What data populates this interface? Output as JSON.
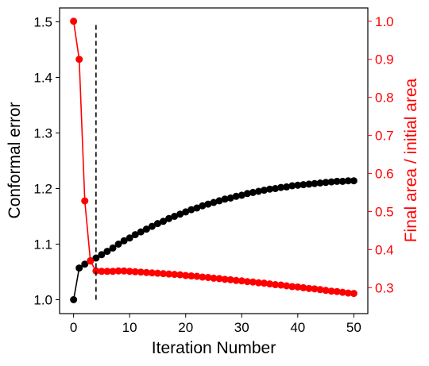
{
  "chart_data": {
    "type": "line",
    "xlabel": "Iteration Number",
    "ylabel_left": "Conformal error",
    "ylabel_right": "Final area / initial area",
    "xlim": [
      -2.5,
      52.5
    ],
    "ylim_left": [
      0.975,
      1.525
    ],
    "ylim_right": [
      0.232,
      1.035
    ],
    "x_ticks": [
      0,
      10,
      20,
      30,
      40,
      50
    ],
    "y_ticks_left": [
      1.0,
      1.1,
      1.2,
      1.3,
      1.4,
      1.5
    ],
    "y_ticks_right": [
      0.3,
      0.4,
      0.5,
      0.6,
      0.7,
      0.8,
      0.9,
      1.0
    ],
    "x_tick_labels": [
      "0",
      "10",
      "20",
      "30",
      "40",
      "50"
    ],
    "y_tick_labels_left": [
      "1.0",
      "1.1",
      "1.2",
      "1.3",
      "1.4",
      "1.5"
    ],
    "y_tick_labels_right": [
      "0.3",
      "0.4",
      "0.5",
      "0.6",
      "0.7",
      "0.8",
      "0.9",
      "1.0"
    ],
    "grid": false,
    "vline": {
      "x": 4,
      "y_from": 1.0,
      "y_to": 1.5,
      "style": "dashed",
      "color": "#000000"
    },
    "series": [
      {
        "axis": "left",
        "color": "#000000",
        "x": [
          0,
          1,
          2,
          3,
          4,
          5,
          6,
          7,
          8,
          9,
          10,
          11,
          12,
          13,
          14,
          15,
          16,
          17,
          18,
          19,
          20,
          21,
          22,
          23,
          24,
          25,
          26,
          27,
          28,
          29,
          30,
          31,
          32,
          33,
          34,
          35,
          36,
          37,
          38,
          39,
          40,
          41,
          42,
          43,
          44,
          45,
          46,
          47,
          48,
          49,
          50
        ],
        "values": [
          1.0,
          1.057,
          1.064,
          1.07,
          1.075,
          1.081,
          1.087,
          1.093,
          1.1,
          1.106,
          1.111,
          1.117,
          1.122,
          1.127,
          1.132,
          1.137,
          1.141,
          1.146,
          1.15,
          1.154,
          1.158,
          1.162,
          1.165,
          1.169,
          1.172,
          1.175,
          1.178,
          1.181,
          1.183,
          1.186,
          1.188,
          1.191,
          1.193,
          1.195,
          1.197,
          1.199,
          1.2,
          1.202,
          1.203,
          1.205,
          1.206,
          1.207,
          1.208,
          1.209,
          1.21,
          1.211,
          1.212,
          1.213,
          1.213,
          1.214,
          1.214
        ]
      },
      {
        "axis": "right",
        "color": "#ff0000",
        "x": [
          0,
          1,
          2,
          3,
          4,
          5,
          6,
          7,
          8,
          9,
          10,
          11,
          12,
          13,
          14,
          15,
          16,
          17,
          18,
          19,
          20,
          21,
          22,
          23,
          24,
          25,
          26,
          27,
          28,
          29,
          30,
          31,
          32,
          33,
          34,
          35,
          36,
          37,
          38,
          39,
          40,
          41,
          42,
          43,
          44,
          45,
          46,
          47,
          48,
          49,
          50
        ],
        "values": [
          1.0,
          0.9,
          0.528,
          0.37,
          0.344,
          0.343,
          0.343,
          0.343,
          0.344,
          0.344,
          0.343,
          0.342,
          0.341,
          0.34,
          0.339,
          0.338,
          0.337,
          0.336,
          0.335,
          0.334,
          0.332,
          0.331,
          0.33,
          0.328,
          0.327,
          0.325,
          0.324,
          0.322,
          0.321,
          0.319,
          0.318,
          0.316,
          0.315,
          0.313,
          0.312,
          0.31,
          0.308,
          0.307,
          0.305,
          0.303,
          0.302,
          0.3,
          0.298,
          0.297,
          0.295,
          0.293,
          0.291,
          0.29,
          0.288,
          0.286,
          0.285
        ]
      }
    ]
  }
}
